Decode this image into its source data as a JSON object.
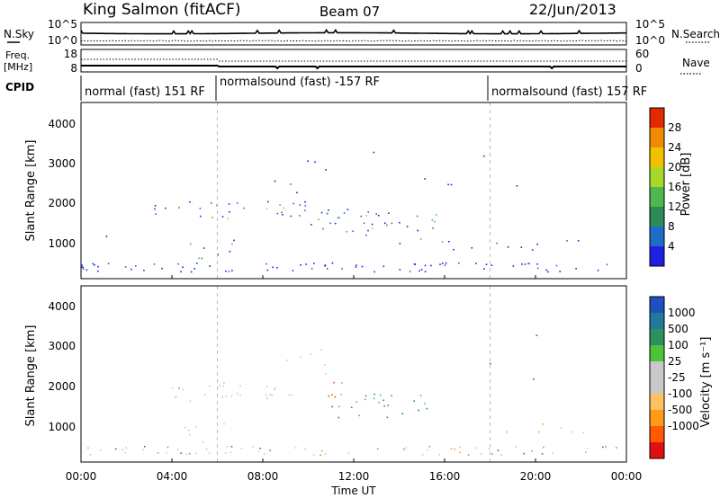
{
  "header": {
    "station": "King Salmon (fitACF)",
    "beam": "Beam 07",
    "date": "22/Jun/2013"
  },
  "noise_panel": {
    "left_label": "N.Sky",
    "right_label": "N.Search",
    "left_ticks": [
      "10^5",
      "10^0"
    ],
    "right_ticks": [
      "10^5",
      "10^0"
    ]
  },
  "freq_panel": {
    "left_label_1": "Freq.",
    "left_label_2": "[MHz]",
    "right_label": "Nave",
    "left_ticks": [
      "18",
      "8"
    ],
    "right_ticks": [
      "60",
      "0"
    ]
  },
  "cpid": {
    "label": "CPID",
    "segments": [
      {
        "text": "normal (fast) 151 RF",
        "start_hour": 0
      },
      {
        "text": "normalsound (fast) -157 RF",
        "start_hour": 6
      },
      {
        "text": "normalsound (fast) 157 RF",
        "start_hour": 18
      }
    ]
  },
  "xaxis": {
    "label": "Time UT",
    "ticks": [
      "00:00",
      "04:00",
      "08:00",
      "12:00",
      "16:00",
      "20:00",
      "00:00"
    ]
  },
  "power_panel": {
    "ylabel": "Slant Range [km]",
    "yticks": [
      "1000",
      "2000",
      "3000",
      "4000"
    ],
    "colorbar_label": "Power [dB]",
    "colorbar_ticks": [
      "4",
      "8",
      "12",
      "16",
      "20",
      "24",
      "28"
    ],
    "colors": [
      "#1f1fe0",
      "#1f6cc8",
      "#2e8b57",
      "#4db84d",
      "#a8d82a",
      "#f2c200",
      "#f08a00",
      "#e02a00"
    ]
  },
  "velocity_panel": {
    "ylabel": "Slant Range [km]",
    "yticks": [
      "1000",
      "2000",
      "3000",
      "4000"
    ],
    "colorbar_label": "Velocity [m s⁻¹]",
    "colorbar_ticks": [
      "-1000",
      "-500",
      "-100",
      "-25",
      "25",
      "100",
      "500",
      "1000"
    ],
    "colors": [
      "#e01010",
      "#ff5a00",
      "#ff9a1a",
      "#ffc060",
      "#c8c8c8",
      "#c8c8c8",
      "#4cc43a",
      "#2f8f5f",
      "#1f7a9a",
      "#2050c0"
    ]
  },
  "chart_data": {
    "type": "heatmap",
    "x_unit": "hours UT",
    "x_range": [
      0,
      24
    ],
    "y_range_km": [
      180,
      4500
    ],
    "power_regions": [
      {
        "t": [
          3.0,
          10.0
        ],
        "r": [
          1550,
          2050
        ],
        "level": "medium"
      },
      {
        "t": [
          10.0,
          16.0
        ],
        "r": [
          900,
          1800
        ],
        "level": "medium-high"
      },
      {
        "t": [
          16.0,
          22.5
        ],
        "r": [
          750,
          1000
        ],
        "level": "low"
      },
      {
        "t": [
          4.3,
          6.7
        ],
        "r": [
          520,
          1000
        ],
        "level": "medium"
      },
      {
        "t": [
          8.5,
          11.5
        ],
        "r": [
          2200,
          3100
        ],
        "level": "low"
      },
      {
        "t": [
          0.0,
          24.0
        ],
        "r": [
          180,
          500
        ],
        "level": "low"
      }
    ],
    "velocity_regions": [
      {
        "t": [
          3.0,
          9.5
        ],
        "r": [
          1550,
          2050
        ],
        "vel": "near-zero"
      },
      {
        "t": [
          10.7,
          15.5
        ],
        "r": [
          1100,
          1800
        ],
        "vel": "+100 to +500"
      },
      {
        "t": [
          11.0,
          11.6
        ],
        "r": [
          1250,
          2050
        ],
        "vel": "-500 to -1000"
      },
      {
        "t": [
          4.5,
          6.3
        ],
        "r": [
          520,
          1000
        ],
        "vel": "-100 to -500"
      },
      {
        "t": [
          18.5,
          22.5
        ],
        "r": [
          750,
          1000
        ],
        "vel": "near-zero"
      }
    ]
  }
}
